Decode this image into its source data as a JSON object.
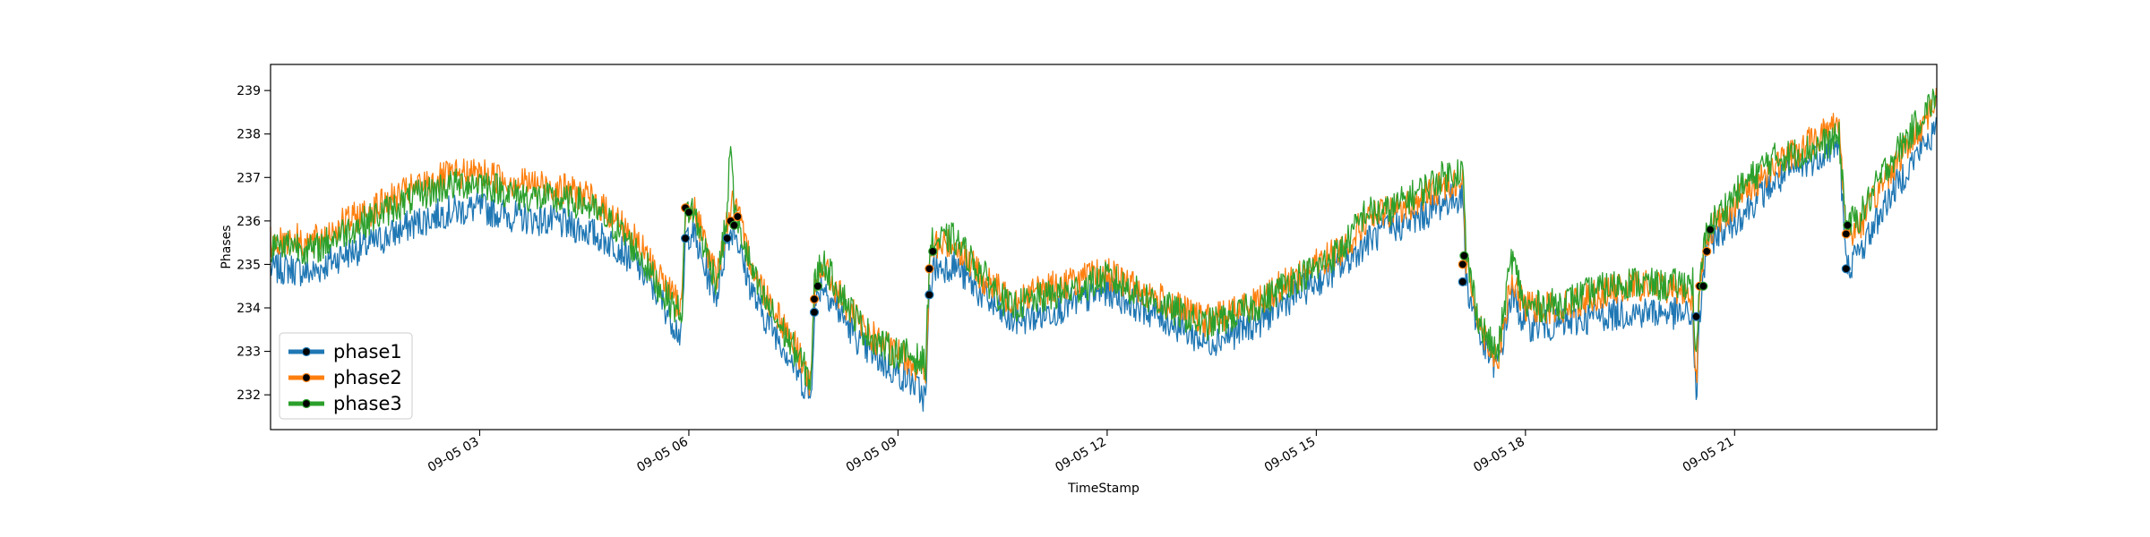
{
  "chart_data": {
    "type": "line",
    "title": "",
    "xlabel": "TimeStamp",
    "ylabel": "Phases",
    "x_start": "2023-09-05 00:00",
    "x_end": "2023-09-05 23:59",
    "xlim_hours": [
      0,
      23.9
    ],
    "ylim": [
      231.2,
      239.6
    ],
    "y_ticks": [
      232,
      233,
      234,
      235,
      236,
      237,
      238,
      239
    ],
    "x_ticks": [
      {
        "hour": 3,
        "label": "09-05 03"
      },
      {
        "hour": 6,
        "label": "09-05 06"
      },
      {
        "hour": 9,
        "label": "09-05 09"
      },
      {
        "hour": 12,
        "label": "09-05 12"
      },
      {
        "hour": 15,
        "label": "09-05 15"
      },
      {
        "hour": 18,
        "label": "09-05 18"
      },
      {
        "hour": 21,
        "label": "09-05 21"
      }
    ],
    "grid": false,
    "legend_position": "lower-left",
    "marker_color": "#000000",
    "series": [
      {
        "name": "phase1",
        "color": "#1f77b4",
        "values": [
          [
            0,
            234.9
          ],
          [
            0.3,
            234.9
          ],
          [
            0.6,
            234.8
          ],
          [
            1,
            235.2
          ],
          [
            1.5,
            235.5
          ],
          [
            2,
            235.9
          ],
          [
            2.5,
            236.2
          ],
          [
            3,
            236.3
          ],
          [
            3.5,
            236.1
          ],
          [
            4,
            236.0
          ],
          [
            4.5,
            235.8
          ],
          [
            5,
            235.4
          ],
          [
            5.3,
            234.9
          ],
          [
            5.6,
            234.2
          ],
          [
            5.8,
            233.6
          ],
          [
            5.9,
            233.3
          ],
          [
            5.95,
            235.6
          ],
          [
            6.05,
            235.8
          ],
          [
            6.2,
            235.0
          ],
          [
            6.4,
            234.3
          ],
          [
            6.55,
            235.6
          ],
          [
            6.65,
            235.9
          ],
          [
            6.8,
            234.9
          ],
          [
            7.0,
            234.0
          ],
          [
            7.3,
            233.3
          ],
          [
            7.6,
            232.4
          ],
          [
            7.75,
            231.9
          ],
          [
            7.8,
            233.9
          ],
          [
            7.9,
            234.6
          ],
          [
            8.2,
            233.8
          ],
          [
            8.5,
            233.1
          ],
          [
            8.9,
            232.6
          ],
          [
            9.2,
            232.3
          ],
          [
            9.4,
            231.9
          ],
          [
            9.45,
            234.3
          ],
          [
            9.5,
            234.9
          ],
          [
            9.8,
            235.0
          ],
          [
            10.2,
            234.3
          ],
          [
            10.6,
            233.7
          ],
          [
            11,
            233.8
          ],
          [
            11.5,
            234.1
          ],
          [
            12,
            234.4
          ],
          [
            12.5,
            234.0
          ],
          [
            13,
            233.6
          ],
          [
            13.4,
            233.2
          ],
          [
            13.8,
            233.4
          ],
          [
            14.2,
            233.7
          ],
          [
            14.6,
            234.2
          ],
          [
            15,
            234.6
          ],
          [
            15.4,
            235.0
          ],
          [
            15.7,
            235.5
          ],
          [
            16,
            235.8
          ],
          [
            16.4,
            236.0
          ],
          [
            16.8,
            236.4
          ],
          [
            17.1,
            236.6
          ],
          [
            17.15,
            234.6
          ],
          [
            17.35,
            233.3
          ],
          [
            17.6,
            232.6
          ],
          [
            17.8,
            234.3
          ],
          [
            18,
            233.6
          ],
          [
            18.5,
            233.6
          ],
          [
            19,
            233.8
          ],
          [
            19.5,
            233.9
          ],
          [
            20,
            233.9
          ],
          [
            20.4,
            233.8
          ],
          [
            20.45,
            231.8
          ],
          [
            20.5,
            233.8
          ],
          [
            20.6,
            235.5
          ],
          [
            21,
            236.0
          ],
          [
            21.5,
            236.8
          ],
          [
            22,
            237.3
          ],
          [
            22.5,
            237.8
          ],
          [
            22.6,
            234.9
          ],
          [
            22.8,
            235.3
          ],
          [
            23.2,
            236.5
          ],
          [
            23.6,
            237.5
          ],
          [
            23.9,
            238.1
          ]
        ]
      },
      {
        "name": "phase2",
        "color": "#ff7f0e",
        "values": [
          [
            0,
            235.5
          ],
          [
            0.3,
            235.6
          ],
          [
            0.6,
            235.5
          ],
          [
            1,
            235.9
          ],
          [
            1.5,
            236.3
          ],
          [
            2,
            236.7
          ],
          [
            2.5,
            237.0
          ],
          [
            3,
            237.1
          ],
          [
            3.5,
            236.9
          ],
          [
            4,
            236.8
          ],
          [
            4.5,
            236.6
          ],
          [
            5,
            236.0
          ],
          [
            5.3,
            235.4
          ],
          [
            5.6,
            234.7
          ],
          [
            5.8,
            234.2
          ],
          [
            5.9,
            234.0
          ],
          [
            5.95,
            236.3
          ],
          [
            6.05,
            236.4
          ],
          [
            6.2,
            235.6
          ],
          [
            6.4,
            234.7
          ],
          [
            6.55,
            236.0
          ],
          [
            6.65,
            236.5
          ],
          [
            6.8,
            235.5
          ],
          [
            7.0,
            234.6
          ],
          [
            7.3,
            233.8
          ],
          [
            7.6,
            232.9
          ],
          [
            7.75,
            232.2
          ],
          [
            7.8,
            234.2
          ],
          [
            7.9,
            235.0
          ],
          [
            8.2,
            234.2
          ],
          [
            8.5,
            233.5
          ],
          [
            8.9,
            233.0
          ],
          [
            9.2,
            232.8
          ],
          [
            9.4,
            232.4
          ],
          [
            9.45,
            234.9
          ],
          [
            9.5,
            235.4
          ],
          [
            9.8,
            235.5
          ],
          [
            10.2,
            234.7
          ],
          [
            10.6,
            234.2
          ],
          [
            11,
            234.4
          ],
          [
            11.5,
            234.6
          ],
          [
            12,
            234.8
          ],
          [
            12.5,
            234.4
          ],
          [
            13,
            234.0
          ],
          [
            13.4,
            233.7
          ],
          [
            13.8,
            233.9
          ],
          [
            14.2,
            234.2
          ],
          [
            14.6,
            234.6
          ],
          [
            15,
            235.0
          ],
          [
            15.4,
            235.4
          ],
          [
            15.7,
            236.0
          ],
          [
            16,
            236.2
          ],
          [
            16.4,
            236.4
          ],
          [
            16.8,
            236.8
          ],
          [
            17.1,
            237.0
          ],
          [
            17.15,
            235.0
          ],
          [
            17.35,
            233.6
          ],
          [
            17.6,
            232.8
          ],
          [
            17.8,
            234.6
          ],
          [
            18,
            234.0
          ],
          [
            18.5,
            234.0
          ],
          [
            19,
            234.3
          ],
          [
            19.5,
            234.5
          ],
          [
            20,
            234.5
          ],
          [
            20.4,
            234.3
          ],
          [
            20.45,
            232.2
          ],
          [
            20.5,
            234.4
          ],
          [
            20.6,
            235.7
          ],
          [
            21,
            236.4
          ],
          [
            21.5,
            237.2
          ],
          [
            22,
            237.7
          ],
          [
            22.5,
            238.3
          ],
          [
            22.6,
            235.7
          ],
          [
            22.8,
            235.9
          ],
          [
            23.2,
            237.1
          ],
          [
            23.6,
            238.0
          ],
          [
            23.9,
            238.8
          ]
        ]
      },
      {
        "name": "phase3",
        "color": "#2ca02c",
        "values": [
          [
            0,
            235.4
          ],
          [
            0.3,
            235.5
          ],
          [
            0.6,
            235.3
          ],
          [
            1,
            235.7
          ],
          [
            1.5,
            236.1
          ],
          [
            2,
            236.5
          ],
          [
            2.5,
            236.8
          ],
          [
            3,
            236.9
          ],
          [
            3.5,
            236.6
          ],
          [
            4,
            236.5
          ],
          [
            4.5,
            236.4
          ],
          [
            5,
            235.8
          ],
          [
            5.3,
            235.2
          ],
          [
            5.6,
            234.4
          ],
          [
            5.8,
            234.0
          ],
          [
            5.9,
            233.9
          ],
          [
            5.95,
            236.2
          ],
          [
            6.05,
            236.3
          ],
          [
            6.2,
            235.5
          ],
          [
            6.4,
            234.6
          ],
          [
            6.55,
            236.1
          ],
          [
            6.6,
            238.0
          ],
          [
            6.65,
            236.2
          ],
          [
            6.8,
            235.4
          ],
          [
            7.0,
            234.4
          ],
          [
            7.3,
            233.6
          ],
          [
            7.6,
            232.8
          ],
          [
            7.75,
            232.3
          ],
          [
            7.8,
            234.5
          ],
          [
            7.9,
            235.1
          ],
          [
            8.2,
            234.3
          ],
          [
            8.5,
            233.5
          ],
          [
            8.9,
            233.0
          ],
          [
            9.2,
            232.9
          ],
          [
            9.4,
            232.7
          ],
          [
            9.45,
            235.3
          ],
          [
            9.5,
            235.5
          ],
          [
            9.8,
            235.6
          ],
          [
            10.2,
            234.8
          ],
          [
            10.6,
            234.0
          ],
          [
            11,
            234.2
          ],
          [
            11.5,
            234.4
          ],
          [
            12,
            234.7
          ],
          [
            12.5,
            234.3
          ],
          [
            13,
            233.9
          ],
          [
            13.4,
            233.6
          ],
          [
            13.8,
            233.8
          ],
          [
            14.2,
            234.1
          ],
          [
            14.6,
            234.6
          ],
          [
            15,
            234.9
          ],
          [
            15.4,
            235.4
          ],
          [
            15.7,
            236.2
          ],
          [
            16,
            236.2
          ],
          [
            16.4,
            236.6
          ],
          [
            16.8,
            237.0
          ],
          [
            17.1,
            237.2
          ],
          [
            17.15,
            235.2
          ],
          [
            17.35,
            233.6
          ],
          [
            17.6,
            232.9
          ],
          [
            17.8,
            235.2
          ],
          [
            18,
            234.0
          ],
          [
            18.5,
            234.1
          ],
          [
            19,
            234.4
          ],
          [
            19.5,
            234.6
          ],
          [
            20,
            234.5
          ],
          [
            20.4,
            234.6
          ],
          [
            20.45,
            232.6
          ],
          [
            20.5,
            234.6
          ],
          [
            20.6,
            235.8
          ],
          [
            21,
            236.6
          ],
          [
            21.5,
            237.4
          ],
          [
            22,
            237.6
          ],
          [
            22.5,
            237.9
          ],
          [
            22.6,
            235.9
          ],
          [
            22.8,
            236.1
          ],
          [
            23.2,
            237.3
          ],
          [
            23.6,
            238.2
          ],
          [
            23.9,
            238.9
          ]
        ]
      }
    ],
    "markers": [
      {
        "series": "phase1",
        "points": [
          [
            5.95,
            235.6
          ],
          [
            6.55,
            235.6
          ],
          [
            7.8,
            233.9
          ],
          [
            9.45,
            234.3
          ],
          [
            17.1,
            234.6
          ],
          [
            20.45,
            233.8
          ],
          [
            22.6,
            234.9
          ]
        ]
      },
      {
        "series": "phase2",
        "points": [
          [
            5.95,
            236.3
          ],
          [
            6.6,
            236.0
          ],
          [
            6.7,
            236.1
          ],
          [
            7.8,
            234.2
          ],
          [
            9.45,
            234.9
          ],
          [
            17.1,
            235.0
          ],
          [
            20.5,
            234.5
          ],
          [
            20.6,
            235.3
          ],
          [
            22.6,
            235.7
          ]
        ]
      },
      {
        "series": "phase3",
        "points": [
          [
            6.0,
            236.2
          ],
          [
            6.65,
            235.9
          ],
          [
            7.85,
            234.5
          ],
          [
            9.5,
            235.3
          ],
          [
            17.12,
            235.2
          ],
          [
            20.55,
            234.5
          ],
          [
            20.65,
            235.8
          ],
          [
            22.62,
            235.9
          ]
        ]
      }
    ]
  }
}
